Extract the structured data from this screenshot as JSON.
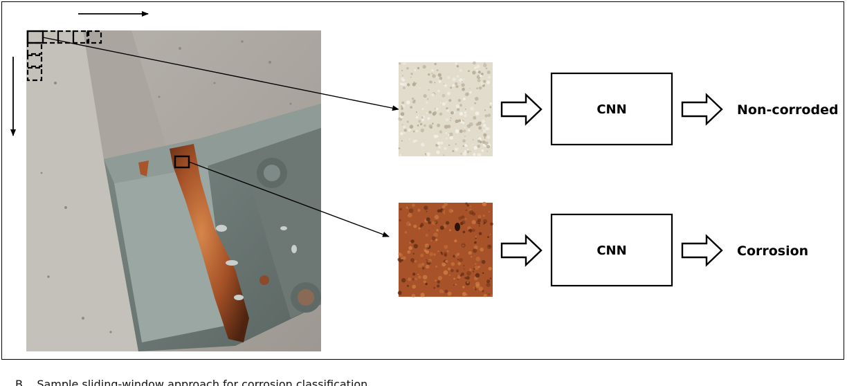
{
  "diagram": {
    "top_path": {
      "cnn_label": "CNN",
      "output_label": "Non-corroded",
      "patch_colors": {
        "base": "#e2dccd",
        "speckle_dark": "#b6ab97",
        "speckle_light": "#f3efe6"
      }
    },
    "bottom_path": {
      "cnn_label": "CNN",
      "output_label": "Corrosion",
      "patch_colors": {
        "base": "#a8522a",
        "highlight": "#d27f45",
        "shadow": "#5a2a12"
      }
    }
  },
  "caption": {
    "text": "B... Sample sliding-window approach for corrosion classification"
  }
}
